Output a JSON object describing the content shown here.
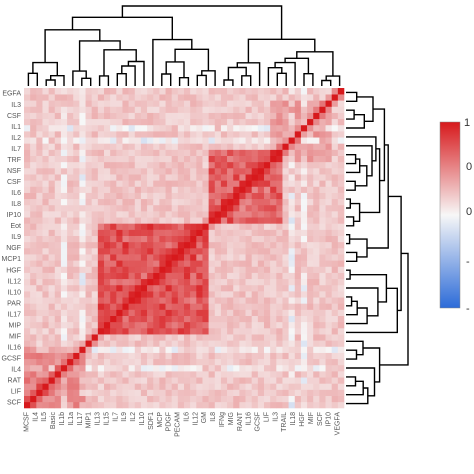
{
  "chart_data": {
    "type": "heatmap",
    "title": "",
    "xlabel": "",
    "ylabel": "",
    "matrix_size": 52,
    "diagonal_value": 1,
    "value_range": [
      -1,
      1
    ],
    "colorbar": {
      "ticks": [
        "1",
        "0",
        "0",
        "-",
        "-"
      ],
      "colors": {
        "high": "#d7191c",
        "mid": "#f7f7f7",
        "low": "#2c6bd8"
      }
    },
    "x_labels": [
      "MCSF",
      "IL4",
      "IL5",
      "Basic",
      "IL1b",
      "IL1a",
      "IL17",
      "MIP1",
      "IL13",
      "IL15",
      "IL7",
      "IL9",
      "IL2",
      "IL10",
      "SDF1",
      "MCP",
      "PDGF",
      "PECAM",
      "IL6",
      "IL12",
      "GM",
      "IL8",
      "IFNg",
      "MIG",
      "RANT",
      "IL16",
      "GCSF",
      "LIF",
      "IL3",
      "TRAIL",
      "IL18",
      "HGF",
      "MIF",
      "SCF",
      "IP10",
      "VEGFA"
    ],
    "y_labels": [
      "EGFA",
      "IL3",
      "CSF",
      "IL1",
      "IL2",
      "IL7",
      "TRF",
      "NSF",
      "CSF",
      "IL6",
      "IL8",
      "IP10",
      "Eot",
      "IL9",
      "NGF",
      "MCP1",
      "HGF",
      "IL12",
      "IL10",
      "PAR",
      "IL17",
      "MIP",
      "MIF",
      "IL16",
      "GCSF",
      "IL4",
      "RAT",
      "LIF",
      "SCF"
    ],
    "block_clusters": [
      {
        "rows": [
          0,
          10
        ],
        "strength": 0.32
      },
      {
        "rows": [
          12,
          30
        ],
        "strength": 0.58
      },
      {
        "rows": [
          30,
          42
        ],
        "strength": 0.55
      },
      {
        "rows": [
          40,
          50
        ],
        "strength": 0.2
      }
    ],
    "cool_rows": [
      6,
      9,
      43,
      45
    ],
    "dendrogram": {
      "top": true,
      "right": true,
      "line_color": "#000000"
    }
  }
}
